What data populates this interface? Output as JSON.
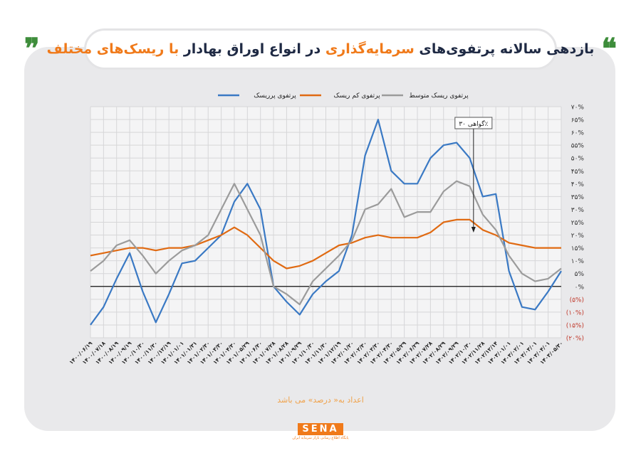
{
  "header": {
    "quote_open": "❝",
    "quote_close": "❞",
    "title_part1": "بازدهی سالانه پرتفوی‌های ",
    "title_highlight": "سرمایه‌گذاری",
    "title_part2": " در انواع اوراق بهادار",
    "title_part3": " با ریسک‌های مختلف"
  },
  "colors": {
    "high_risk": "#3a79c4",
    "low_risk": "#e06a12",
    "medium_risk": "#9b9b9b",
    "negative_tick": "#c0392b",
    "highlight": "#f07a1a"
  },
  "footer": {
    "note": "اعداد به« درصد» می باشد",
    "logo": "SENA",
    "logo_sub": "پایگاه اطلاع رسانی بازار سرمایه ایران"
  },
  "chart_data": {
    "type": "line",
    "x_labels": [
      "۱۴۰۰/۰۶/۱۹",
      "۱۴۰۰/۰۷/۱۸",
      "۱۴۰۰/۰۸/۱۹",
      "۱۴۰۰/۰۹/۱۹",
      "۱۴۰۰/۱۰/۳۰",
      "۱۴۰۰/۱۱/۳۰",
      "۱۴۰۰/۱۲/۱۹",
      "۱۴۰۱/۰۱/۰۱",
      "۱۴۰۱/۰۱/۳۱",
      "۱۴۰۱/۰۲/۳۰",
      "۱۴۰۱/۰۳/۳۰",
      "۱۴۰۱/۰۴/۳۰",
      "۱۴۰۱/۰۵/۲۹",
      "۱۴۰۱/۰۶/۳۰",
      "۱۴۰۱/۰۷/۲۸",
      "۱۴۰۱/۰۸/۲۸",
      "۱۴۰۱/۰۹/۲۹",
      "۱۴۰۱/۱۰/۳۰",
      "۱۴۰۱/۱۱/۳۰",
      "۱۴۰۱/۱۲/۱۹",
      "۱۴۰۲/۰۱/۲۰",
      "۱۴۰۲/۰۲/۳۰",
      "۱۴۰۲/۰۳/۳۰",
      "۱۴۰۲/۰۴/۳۰",
      "۱۴۰۲/۰۵/۲۹",
      "۱۴۰۲/۰۶/۲۹",
      "۱۴۰۲/۰۷/۲۸",
      "۱۴۰۲/۰۸/۲۹",
      "۱۴۰۲/۰۹/۲۹",
      "۱۴۰۲/۱۰/۳۰",
      "۱۴۰۲/۱۱/۲۸",
      "۱۴۰۲/۱۲/۱۴",
      "۱۴۰۳/۰۱/۰۱",
      "۱۴۰۳/۰۲/۰۱",
      "۱۴۰۳/۰۳/۰۱",
      "۱۴۰۳/۰۴/۰۱",
      "۱۴۰۳/۰۵/۳۰"
    ],
    "y_ticks": [
      {
        "v": 70,
        "label": "۷۰%"
      },
      {
        "v": 65,
        "label": "۶۵%"
      },
      {
        "v": 60,
        "label": "۶۰%"
      },
      {
        "v": 55,
        "label": "۵۵%"
      },
      {
        "v": 50,
        "label": "۵۰%"
      },
      {
        "v": 45,
        "label": "۴۵%"
      },
      {
        "v": 40,
        "label": "۴۰%"
      },
      {
        "v": 35,
        "label": "۳۵%"
      },
      {
        "v": 30,
        "label": "۳۰%"
      },
      {
        "v": 25,
        "label": "۲۵%"
      },
      {
        "v": 20,
        "label": "۲۰%"
      },
      {
        "v": 15,
        "label": "۱۵%"
      },
      {
        "v": 10,
        "label": "۱۰%"
      },
      {
        "v": 5,
        "label": "۵%"
      },
      {
        "v": 0,
        "label": "۰%"
      },
      {
        "v": -5,
        "label": "(۵%)"
      },
      {
        "v": -10,
        "label": "(۱۰%)"
      },
      {
        "v": -15,
        "label": "(۱۵%)"
      },
      {
        "v": -20,
        "label": "(۲۰%)"
      }
    ],
    "ylim": [
      -20,
      70
    ],
    "grid": true,
    "legend_position": "top",
    "series": [
      {
        "name": "پرتفوی پرریسک",
        "color": "#3a79c4",
        "values": [
          -15,
          -8,
          3,
          13,
          -2,
          -14,
          -3,
          9,
          10,
          15,
          20,
          33,
          40,
          30,
          0,
          -6,
          -11,
          -3,
          2,
          6,
          20,
          51,
          65,
          45,
          40,
          40,
          50,
          55,
          56,
          50,
          35,
          36,
          6,
          -8,
          -9,
          -2,
          6
        ]
      },
      {
        "name": "پرتفوی کم ریسک",
        "color": "#e06a12",
        "values": [
          12,
          13,
          14,
          15,
          15,
          14,
          15,
          15,
          16,
          18,
          20,
          23,
          20,
          15,
          10,
          7,
          8,
          10,
          13,
          16,
          17,
          19,
          20,
          19,
          19,
          19,
          21,
          25,
          26,
          26,
          22,
          20,
          17,
          16,
          15,
          15,
          15
        ]
      },
      {
        "name": "پرتفوی ریسک متوسط",
        "color": "#9b9b9b",
        "values": [
          6,
          10,
          16,
          18,
          12,
          5,
          10,
          14,
          16,
          20,
          30,
          40,
          30,
          20,
          0,
          -3,
          -7,
          2,
          7,
          12,
          18,
          30,
          32,
          38,
          27,
          29,
          29,
          37,
          41,
          39,
          28,
          22,
          12,
          5,
          2,
          3,
          7
        ]
      }
    ],
    "annotation": {
      "text": "گواهی ۳۰٪",
      "x_index": 30,
      "y": 21
    }
  }
}
